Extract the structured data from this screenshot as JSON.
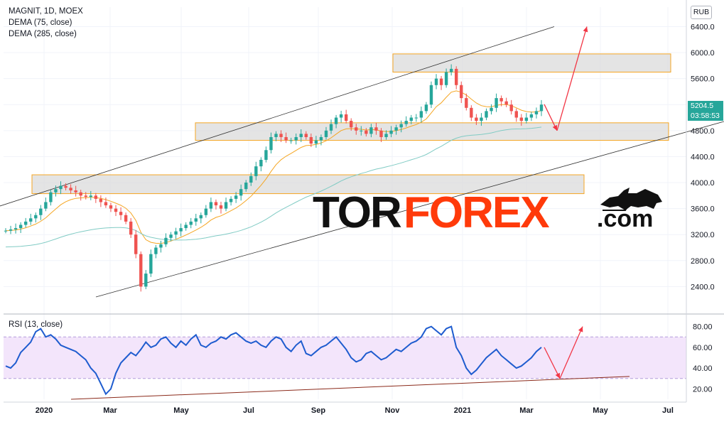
{
  "header": {
    "symbol": "MAGNIT, 1D, MOEX",
    "dema1": "DEMA (75, close)",
    "dema2": "DEMA (285, close)",
    "currency": "RUB"
  },
  "rsi_panel": {
    "label": "RSI (13, close)"
  },
  "price_tag": {
    "price": "5204.5",
    "countdown": "03:58:53"
  },
  "watermark": {
    "part1": "TOR",
    "part2": "FOREX",
    "part3": ".com"
  },
  "colors": {
    "up": "#26a69a",
    "down": "#ef5350",
    "dema75": "#f5a623",
    "dema285": "#80cbc4",
    "rsi": "#1e5ccf",
    "rsi_band": "#f3e5fb",
    "arrow": "#f23645",
    "zone_fill": "#d9d9d9",
    "zone_border": "#f5a623",
    "channel": "#333333",
    "rsi_trend": "#8b2a1a"
  },
  "icons": [
    "bull-icon"
  ],
  "chart_data": [
    {
      "type": "candlestick",
      "title": "MAGNIT, 1D, MOEX",
      "xlabel": "",
      "ylabel": "RUB",
      "ylim": [
        2000,
        6700
      ],
      "y_ticks": [
        "6400.0",
        "6000.0",
        "5600.0",
        "5200.0",
        "4800.0",
        "4400.0",
        "4000.0",
        "3600.0",
        "3200.0",
        "2800.0",
        "2400.0"
      ],
      "x_ticks": [
        "2020",
        "Mar",
        "May",
        "Jul",
        "Sep",
        "Nov",
        "2021",
        "Mar",
        "May",
        "Jul"
      ],
      "last_price": 5204.5,
      "series": [
        {
          "name": "MAGNIT",
          "values": [
            3260,
            3280,
            3300,
            3350,
            3400,
            3450,
            3500,
            3600,
            3700,
            3850,
            3900,
            3950,
            3920,
            3880,
            3850,
            3800,
            3780,
            3800,
            3750,
            3700,
            3650,
            3600,
            3550,
            3500,
            3400,
            3200,
            2900,
            2400,
            2600,
            2900,
            3000,
            3050,
            3150,
            3200,
            3250,
            3300,
            3350,
            3400,
            3450,
            3500,
            3600,
            3700,
            3650,
            3600,
            3700,
            3750,
            3800,
            3900,
            4000,
            4100,
            4250,
            4350,
            4500,
            4700,
            4750,
            4700,
            4650,
            4650,
            4700,
            4750,
            4700,
            4600,
            4650,
            4700,
            4800,
            4900,
            5000,
            5050,
            4950,
            4850,
            4800,
            4800,
            4750,
            4850,
            4800,
            4700,
            4750,
            4800,
            4850,
            4900,
            4950,
            5000,
            5000,
            5100,
            5200,
            5500,
            5600,
            5500,
            5700,
            5750,
            5500,
            5300,
            5150,
            5000,
            4950,
            5000,
            5100,
            5150,
            5300,
            5250,
            5200,
            5100,
            5000,
            4950,
            5000,
            5050,
            5100,
            5200
          ]
        },
        {
          "name": "DEMA (75, close)"
        },
        {
          "name": "DEMA (285, close)"
        }
      ],
      "zones": [
        {
          "from": 5700,
          "to": 5980
        },
        {
          "from": 4650,
          "to": 4920
        },
        {
          "from": 3830,
          "to": 4120
        }
      ],
      "projection": [
        5204.5,
        4800,
        6400
      ]
    },
    {
      "type": "line",
      "title": "RSI (13, close)",
      "ylim": [
        10,
        90
      ],
      "y_ticks": [
        "80.00",
        "60.00",
        "40.00",
        "20.00"
      ],
      "band": [
        30,
        70
      ],
      "series": [
        {
          "name": "RSI",
          "values": [
            42,
            40,
            45,
            55,
            60,
            65,
            75,
            78,
            70,
            72,
            68,
            62,
            60,
            58,
            56,
            52,
            48,
            40,
            35,
            25,
            15,
            20,
            35,
            45,
            50,
            55,
            52,
            58,
            65,
            60,
            62,
            68,
            70,
            64,
            60,
            66,
            62,
            68,
            72,
            62,
            60,
            64,
            66,
            70,
            68,
            72,
            74,
            70,
            66,
            64,
            66,
            62,
            60,
            66,
            70,
            68,
            60,
            56,
            62,
            66,
            54,
            52,
            56,
            60,
            62,
            66,
            70,
            64,
            58,
            50,
            46,
            48,
            54,
            56,
            52,
            48,
            50,
            54,
            58,
            56,
            60,
            64,
            66,
            70,
            78,
            80,
            76,
            72,
            78,
            80,
            60,
            52,
            40,
            34,
            38,
            44,
            50,
            54,
            58,
            52,
            48,
            44,
            40,
            42,
            46,
            50,
            56,
            60
          ]
        }
      ],
      "projection": [
        60,
        30,
        80
      ]
    }
  ]
}
